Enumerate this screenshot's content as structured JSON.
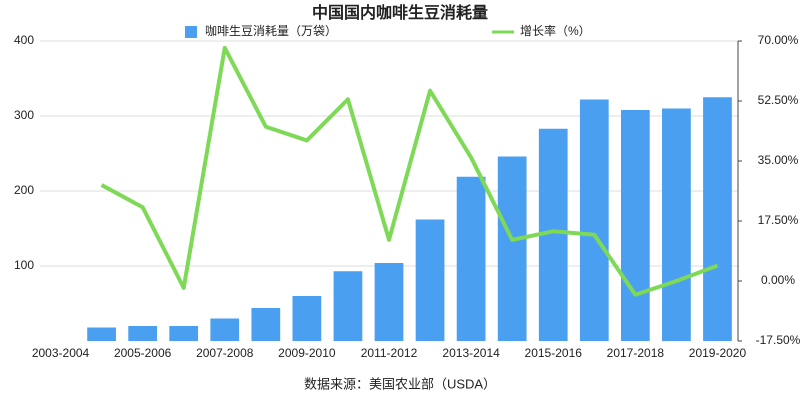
{
  "chart_data": {
    "type": "bar_line",
    "title": "中国国内咖啡生豆消耗量",
    "source": "数据来源：美国农业部（USDA）",
    "categories": [
      "2003-2004",
      null,
      "2005-2006",
      null,
      "2007-2008",
      null,
      "2009-2010",
      null,
      "2011-2012",
      null,
      "2013-2014",
      null,
      "2015-2016",
      null,
      "2017-2018",
      null,
      "2019-2020"
    ],
    "series": [
      {
        "name": "咖啡生豆消耗量（万袋）",
        "color": "#4a9ff0",
        "type": "bar",
        "values": [
          null,
          18,
          20,
          20,
          30,
          44,
          60,
          93,
          104,
          162,
          219,
          246,
          283,
          322,
          308,
          310,
          325
        ]
      },
      {
        "name": "增长率（%）",
        "color": "#7ed957",
        "type": "line",
        "axis": "y2",
        "values": [
          null,
          28,
          21.5,
          -2,
          68,
          45,
          41,
          53,
          12,
          55.5,
          36,
          12,
          14.5,
          13.5,
          -4,
          0,
          4.5
        ]
      }
    ],
    "ylim": [
      0,
      400
    ],
    "yticks": [
      100,
      200,
      300,
      400
    ],
    "y2lim": [
      -17.5,
      70
    ],
    "y2ticks": [
      {
        "value": 70,
        "label": "70.00%"
      },
      {
        "value": 52.5,
        "label": "52.50%"
      },
      {
        "value": 35,
        "label": "35.00%"
      },
      {
        "value": 17.5,
        "label": "17.50%"
      },
      {
        "value": 0,
        "label": "0.00%"
      },
      {
        "value": -17.5,
        "label": "-17.50%"
      }
    ],
    "grid": true
  }
}
